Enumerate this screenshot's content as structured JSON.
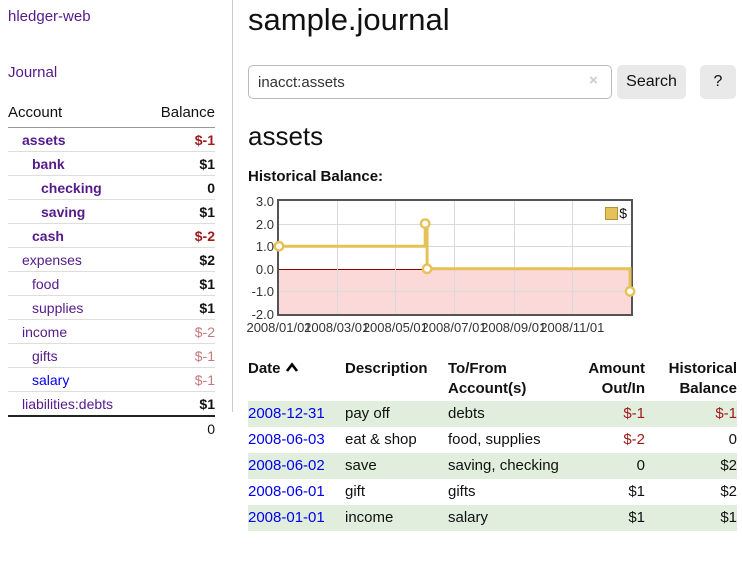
{
  "app": {
    "brand": "hledger-web",
    "nav_journal": "Journal"
  },
  "sidebar": {
    "header": {
      "account": "Account",
      "balance": "Balance"
    },
    "accounts": [
      {
        "name": "assets",
        "balance": "$-1"
      },
      {
        "name": "bank",
        "balance": "$1"
      },
      {
        "name": "checking",
        "balance": "0"
      },
      {
        "name": "saving",
        "balance": "$1"
      },
      {
        "name": "cash",
        "balance": "$-2"
      },
      {
        "name": "expenses",
        "balance": "$2"
      },
      {
        "name": "food",
        "balance": "$1"
      },
      {
        "name": "supplies",
        "balance": "$1"
      },
      {
        "name": "income",
        "balance": "$-2"
      },
      {
        "name": "gifts",
        "balance": "$-1"
      },
      {
        "name": "salary",
        "balance": "$-1"
      },
      {
        "name": "liabilities:debts",
        "balance": "$1"
      }
    ],
    "total": "0"
  },
  "header": {
    "title": "sample.journal"
  },
  "search": {
    "value": "inacct:assets",
    "clear_icon": "×",
    "button": "Search",
    "help_button": "?"
  },
  "account_page": {
    "heading": "assets",
    "chart_label": "Historical Balance:"
  },
  "chart_data": {
    "type": "line",
    "title": "Historical Balance",
    "step": true,
    "series": [
      {
        "name": "$",
        "points": [
          [
            "2008-01-01",
            1
          ],
          [
            "2008-06-01",
            2
          ],
          [
            "2008-06-03",
            0
          ],
          [
            "2008-12-31",
            -1
          ]
        ]
      }
    ],
    "x_domain": [
      "2008-01-01",
      "2009-01-01"
    ],
    "ylim": [
      -2,
      3
    ],
    "y_ticks": [
      "3.0",
      "2.0",
      "1.0",
      "0.0",
      "-1.0",
      "-2.0"
    ],
    "x_ticks": [
      {
        "date": "2008-01-01",
        "label": "2008/01/01"
      },
      {
        "date": "2008-03-01",
        "label": "2008/03/01"
      },
      {
        "date": "2008-05-01",
        "label": "2008/05/01"
      },
      {
        "date": "2008-07-01",
        "label": "2008/07/01"
      },
      {
        "date": "2008-09-01",
        "label": "2008/09/01"
      },
      {
        "date": "2008-11-01",
        "label": "2008/11/01"
      }
    ],
    "legend": {
      "label": "$",
      "position": "top-right"
    },
    "grid": true,
    "zero_line": true,
    "negative_region_shaded": true,
    "colors": {
      "line": "#e6c158",
      "marker_fill": "#ffffff",
      "fill_negative": "#fbd9d9",
      "zero_line": "#8b0000"
    }
  },
  "register": {
    "headers": {
      "date": "Date",
      "description": "Description",
      "accounts": "To/From Account(s)",
      "amount": "Amount Out/In",
      "balance": "Historical Balance"
    },
    "rows": [
      {
        "date": "2008-12-31",
        "description": "pay off",
        "accounts": "debts",
        "amount": "$-1",
        "balance": "$-1"
      },
      {
        "date": "2008-06-03",
        "description": "eat & shop",
        "accounts": "food, supplies",
        "amount": "$-2",
        "balance": "0"
      },
      {
        "date": "2008-06-02",
        "description": "save",
        "accounts": "saving, checking",
        "amount": "0",
        "balance": "$2"
      },
      {
        "date": "2008-06-01",
        "description": "gift",
        "accounts": "gifts",
        "amount": "$1",
        "balance": "$2"
      },
      {
        "date": "2008-01-01",
        "description": "income",
        "accounts": "salary",
        "amount": "$1",
        "balance": "$1"
      }
    ]
  }
}
